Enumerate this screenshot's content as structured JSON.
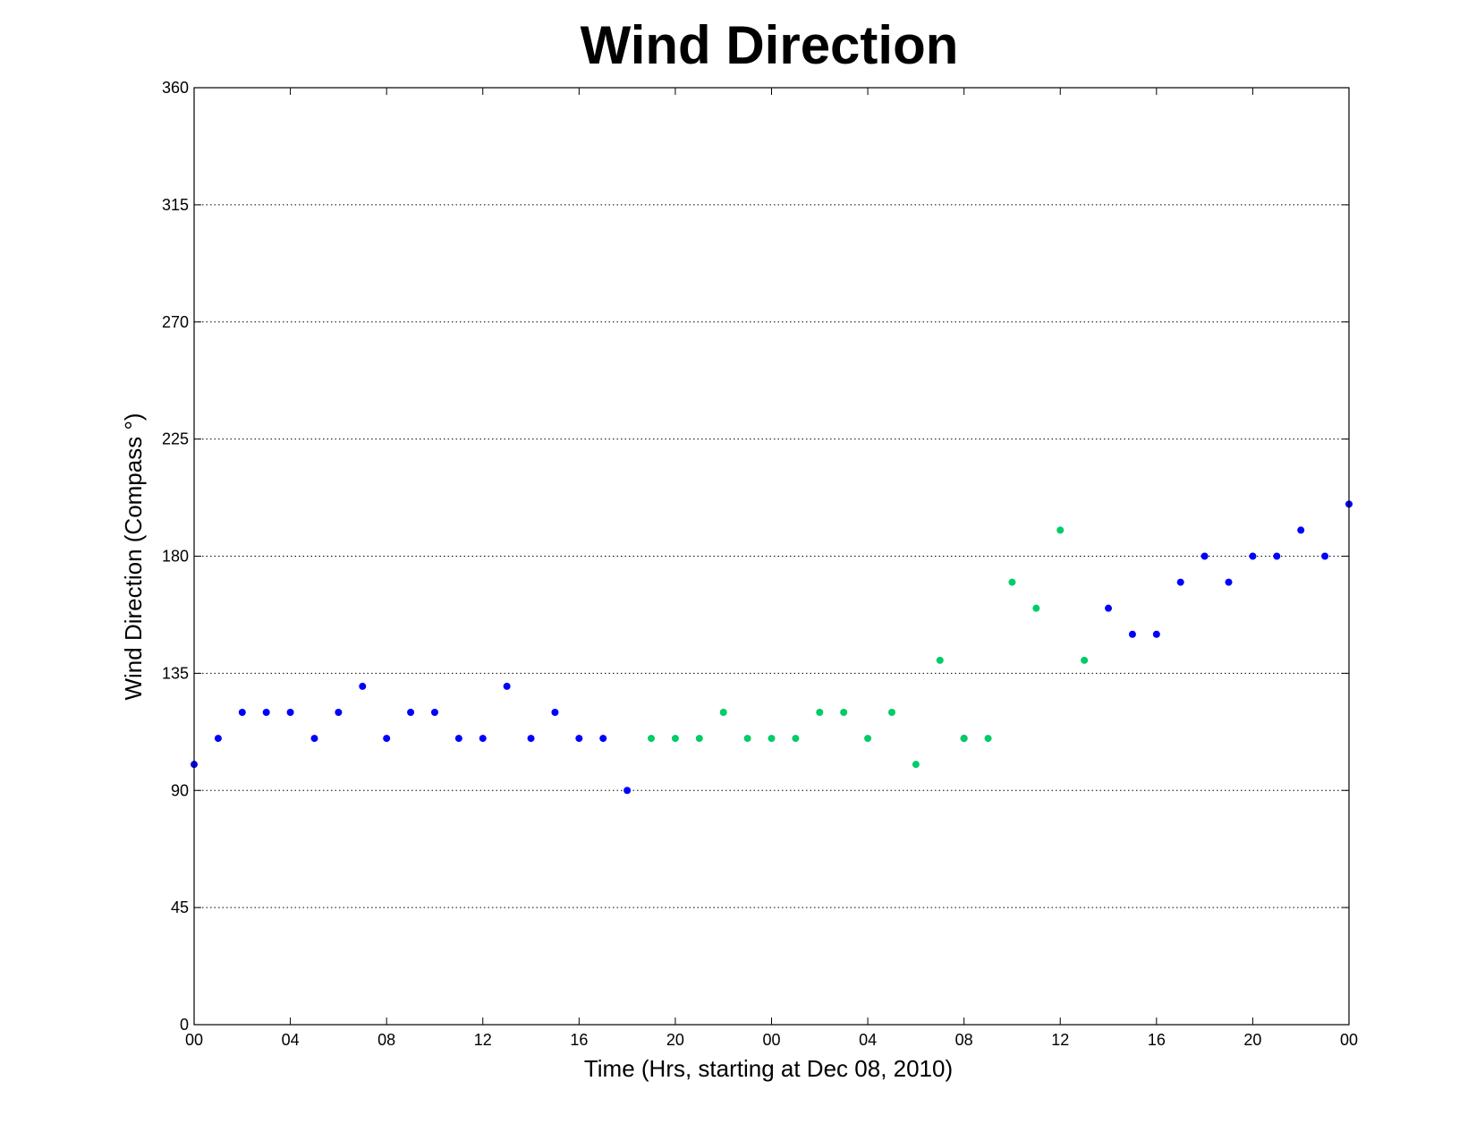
{
  "chart_data": {
    "type": "scatter",
    "title": "Wind Direction",
    "xlabel": "Time (Hrs, starting at Dec 08, 2010)",
    "ylabel": "Wind Direction (Compass  °)",
    "ylim": [
      0,
      360
    ],
    "yticks": [
      0,
      45,
      90,
      135,
      180,
      225,
      270,
      315,
      360
    ],
    "xlim": [
      "2010-12-08 00:00",
      "2010-12-10 00:00"
    ],
    "xtick_labels": [
      "00",
      "04",
      "08",
      "12",
      "16",
      "20",
      "00",
      "04",
      "08",
      "12",
      "16",
      "20",
      "00"
    ],
    "grid": "horizontal",
    "legend": "none",
    "series": [
      {
        "color": "#0000ff",
        "points": [
          {
            "x": "2010-12-08 00:00",
            "y": 100
          },
          {
            "x": "2010-12-08 01:00",
            "y": 110
          },
          {
            "x": "2010-12-08 02:00",
            "y": 120
          },
          {
            "x": "2010-12-08 03:00",
            "y": 120
          },
          {
            "x": "2010-12-08 04:00",
            "y": 120
          },
          {
            "x": "2010-12-08 05:00",
            "y": 110
          },
          {
            "x": "2010-12-08 06:00",
            "y": 120
          },
          {
            "x": "2010-12-08 07:00",
            "y": 130
          },
          {
            "x": "2010-12-08 08:00",
            "y": 110
          },
          {
            "x": "2010-12-08 09:00",
            "y": 120
          },
          {
            "x": "2010-12-08 10:00",
            "y": 120
          },
          {
            "x": "2010-12-08 11:00",
            "y": 110
          },
          {
            "x": "2010-12-08 12:00",
            "y": 110
          },
          {
            "x": "2010-12-08 13:00",
            "y": 130
          },
          {
            "x": "2010-12-08 14:00",
            "y": 110
          },
          {
            "x": "2010-12-08 15:00",
            "y": 120
          },
          {
            "x": "2010-12-08 16:00",
            "y": 110
          },
          {
            "x": "2010-12-08 17:00",
            "y": 110
          },
          {
            "x": "2010-12-08 18:00",
            "y": 90
          },
          {
            "x": "2010-12-09 08:00",
            "y": 110
          },
          {
            "x": "2010-12-09 14:00",
            "y": 160
          },
          {
            "x": "2010-12-09 15:00",
            "y": 150
          },
          {
            "x": "2010-12-09 16:00",
            "y": 150
          },
          {
            "x": "2010-12-09 17:00",
            "y": 170
          },
          {
            "x": "2010-12-09 18:00",
            "y": 180
          },
          {
            "x": "2010-12-09 19:00",
            "y": 170
          },
          {
            "x": "2010-12-09 20:00",
            "y": 180
          },
          {
            "x": "2010-12-09 21:00",
            "y": 180
          },
          {
            "x": "2010-12-09 22:00",
            "y": 190
          },
          {
            "x": "2010-12-09 23:00",
            "y": 180
          },
          {
            "x": "2010-12-10 00:00",
            "y": 200
          }
        ]
      },
      {
        "color": "#00cc66",
        "points": [
          {
            "x": "2010-12-08 19:00",
            "y": 110
          },
          {
            "x": "2010-12-08 20:00",
            "y": 110
          },
          {
            "x": "2010-12-08 21:00",
            "y": 110
          },
          {
            "x": "2010-12-08 22:00",
            "y": 120
          },
          {
            "x": "2010-12-08 23:00",
            "y": 110
          },
          {
            "x": "2010-12-09 00:00",
            "y": 110
          },
          {
            "x": "2010-12-09 01:00",
            "y": 110
          },
          {
            "x": "2010-12-09 02:00",
            "y": 120
          },
          {
            "x": "2010-12-09 03:00",
            "y": 120
          },
          {
            "x": "2010-12-09 04:00",
            "y": 110
          },
          {
            "x": "2010-12-09 05:00",
            "y": 120
          },
          {
            "x": "2010-12-09 06:00",
            "y": 100
          },
          {
            "x": "2010-12-09 07:00",
            "y": 140
          },
          {
            "x": "2010-12-09 08:00",
            "y": 110
          },
          {
            "x": "2010-12-09 09:00",
            "y": 110
          },
          {
            "x": "2010-12-09 10:00",
            "y": 170
          },
          {
            "x": "2010-12-09 11:00",
            "y": 160
          },
          {
            "x": "2010-12-09 12:00",
            "y": 190
          },
          {
            "x": "2010-12-09 13:00",
            "y": 140
          }
        ]
      }
    ]
  }
}
